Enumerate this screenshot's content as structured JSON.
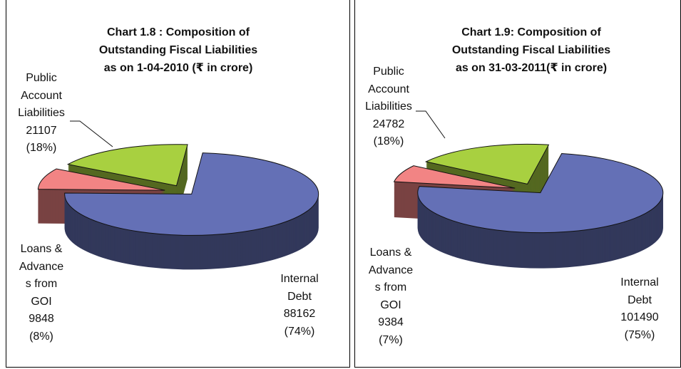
{
  "chart_data": [
    {
      "type": "pie3d",
      "title": "Chart 1.8 : Composition of\nOutstanding Fiscal Liabilities\nas on 1-04-2010 (₹ in crore)",
      "categories": [
        "Internal\nDebt",
        "Loans &\nAdvance\ns from\nGOI",
        "Public\nAccount\nLiabilities"
      ],
      "values": [
        88162,
        9848,
        21107
      ],
      "percents": [
        74,
        8,
        18
      ],
      "percent_labels": [
        "(74%)",
        "(8%)",
        "(18%)"
      ],
      "colors": [
        "#6470b6",
        "#f28484",
        "#a8d040"
      ]
    },
    {
      "type": "pie3d",
      "title": "Chart 1.9: Composition of\nOutstanding Fiscal Liabilities\nas on 31-03-2011(₹ in crore)",
      "categories": [
        "Internal\nDebt",
        "Loans &\nAdvance\ns from\nGOI",
        "Public\nAccount\nLiabilities"
      ],
      "values": [
        101490,
        9384,
        24782
      ],
      "percents": [
        75,
        7,
        18
      ],
      "percent_labels": [
        "(75%)",
        "(7%)",
        "(18%)"
      ],
      "colors": [
        "#6470b6",
        "#f28484",
        "#a8d040"
      ]
    }
  ]
}
